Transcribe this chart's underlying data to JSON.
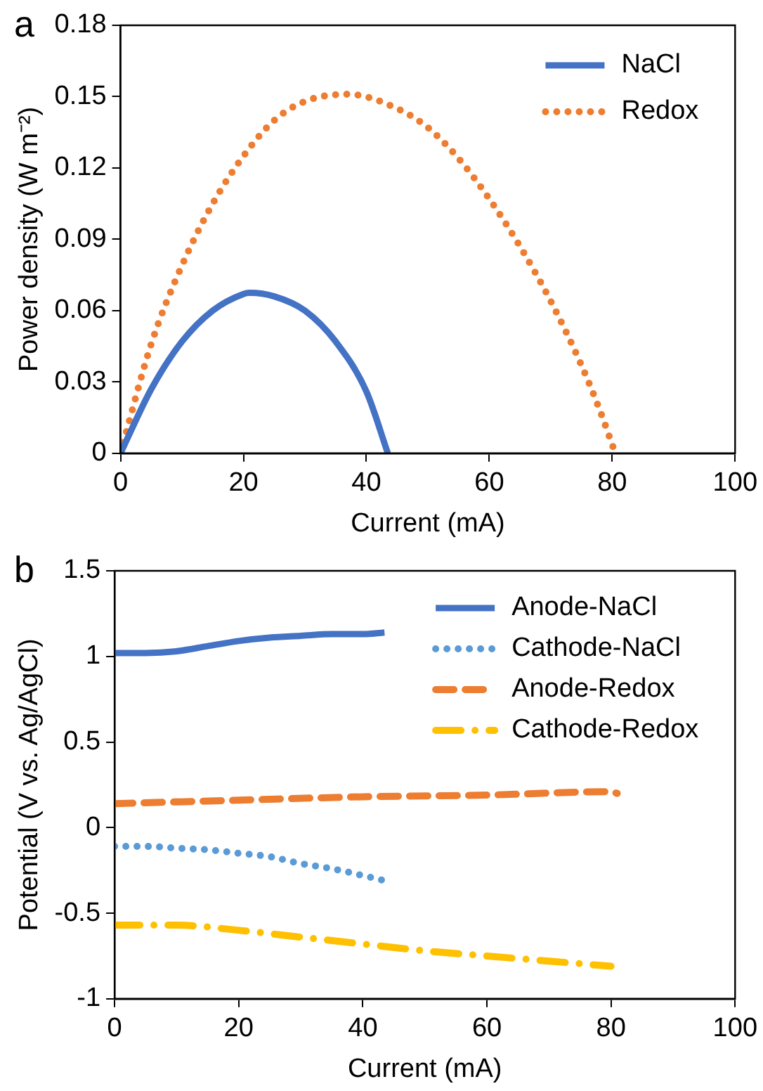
{
  "chart_data": [
    {
      "type": "line",
      "title": "a",
      "xlabel": "Current (mA)",
      "ylabel": "Power density (W m⁻²)",
      "xlim": [
        0,
        100
      ],
      "xticks": [
        0,
        20,
        40,
        60,
        80,
        100
      ],
      "ylim": [
        0,
        0.18
      ],
      "yticks": [
        0,
        0.03,
        0.06,
        0.09,
        0.12,
        0.15,
        0.18
      ],
      "grid": false,
      "legend": "top right",
      "marker": "none",
      "series": [
        {
          "name": "NaCl",
          "color": "#4472c4",
          "line_style": "solid",
          "x": [
            0,
            5,
            10,
            15,
            20,
            21,
            25,
            30,
            35,
            40,
            43.5
          ],
          "values": [
            0,
            0.027,
            0.047,
            0.06,
            0.067,
            0.0675,
            0.066,
            0.06,
            0.047,
            0.026,
            0
          ]
        },
        {
          "name": "Redox",
          "color": "#ed7d31",
          "line_style": "dotted",
          "x": [
            0,
            5,
            10,
            15,
            20,
            25,
            30,
            37,
            45,
            50,
            55,
            60,
            65,
            70,
            75,
            78,
            80.5
          ],
          "values": [
            0,
            0.046,
            0.079,
            0.105,
            0.125,
            0.14,
            0.148,
            0.151,
            0.145,
            0.137,
            0.124,
            0.107,
            0.087,
            0.064,
            0.037,
            0.018,
            0
          ]
        }
      ]
    },
    {
      "type": "line",
      "title": "b",
      "xlabel": "Current (mA)",
      "ylabel": "Potential (V vs. Ag/AgCl)",
      "xlim": [
        0,
        100
      ],
      "xticks": [
        0,
        20,
        40,
        60,
        80,
        100
      ],
      "ylim": [
        -1,
        1.5
      ],
      "yticks": [
        -1,
        -0.5,
        0,
        0.5,
        1,
        1.5
      ],
      "grid": false,
      "legend": "top right",
      "marker": "none",
      "series": [
        {
          "name": "Anode-NaCl",
          "color": "#4472c4",
          "line_style": "solid",
          "x": [
            0,
            5,
            10,
            15,
            20,
            25,
            30,
            35,
            40,
            43.5
          ],
          "values": [
            1.02,
            1.02,
            1.03,
            1.06,
            1.09,
            1.11,
            1.12,
            1.13,
            1.13,
            1.14
          ]
        },
        {
          "name": "Cathode-NaCl",
          "color": "#5b9bd5",
          "line_style": "dotted",
          "x": [
            0,
            5,
            10,
            15,
            20,
            25,
            30,
            35,
            40,
            43.5
          ],
          "values": [
            -0.11,
            -0.11,
            -0.12,
            -0.13,
            -0.15,
            -0.17,
            -0.21,
            -0.24,
            -0.28,
            -0.31
          ]
        },
        {
          "name": "Anode-Redox",
          "color": "#ed7d31",
          "line_style": "dashed",
          "x": [
            0,
            20,
            40,
            60,
            80,
            81
          ],
          "values": [
            0.14,
            0.16,
            0.18,
            0.19,
            0.21,
            0.2
          ]
        },
        {
          "name": "Cathode-Redox",
          "color": "#ffc000",
          "line_style": "dashdot",
          "x": [
            0,
            10,
            20,
            30,
            40,
            50,
            60,
            70,
            80
          ],
          "values": [
            -0.57,
            -0.57,
            -0.6,
            -0.64,
            -0.68,
            -0.72,
            -0.75,
            -0.78,
            -0.81
          ]
        }
      ]
    }
  ]
}
